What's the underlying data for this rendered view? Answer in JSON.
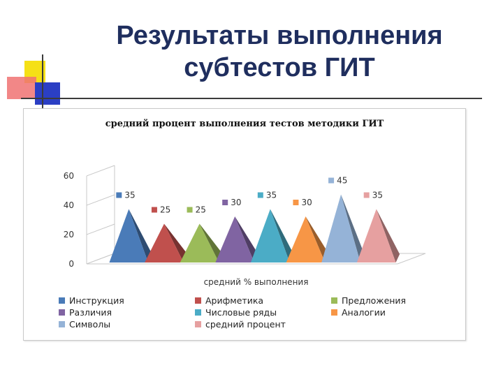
{
  "slide": {
    "title_line1": "Результаты выполнения",
    "title_line2": "субтестов ГИТ"
  },
  "chart_data": {
    "type": "bar",
    "title": "средний процент выполнения тестов методики ГИТ",
    "categories": [
      "средний % выполнения"
    ],
    "xlabel": "средний % выполнения",
    "ylabel": "",
    "ylim": [
      0,
      60
    ],
    "yticks": [
      "0",
      "20",
      "40",
      "60"
    ],
    "bar_shape": "pyramid-3d",
    "grid": false,
    "legend_position": "bottom",
    "series": [
      {
        "name": "Инструкция",
        "values": [
          35
        ],
        "label": "35",
        "color": "#4a7bb8"
      },
      {
        "name": "Арифметика",
        "values": [
          25
        ],
        "label": "25",
        "color": "#c0504d"
      },
      {
        "name": "Предложения",
        "values": [
          25
        ],
        "label": "25",
        "color": "#9bbb59"
      },
      {
        "name": "Различия",
        "values": [
          30
        ],
        "label": "30",
        "color": "#8064a2"
      },
      {
        "name": "Числовые ряды",
        "values": [
          35
        ],
        "label": "35",
        "color": "#4bacc6"
      },
      {
        "name": "Аналогии",
        "values": [
          30
        ],
        "label": "30",
        "color": "#f79646"
      },
      {
        "name": "Символы",
        "values": [
          45
        ],
        "label": "45",
        "color": "#95b3d7"
      },
      {
        "name": "средний процент",
        "values": [
          35
        ],
        "label": "35",
        "color": "#e6a0a0"
      }
    ]
  }
}
